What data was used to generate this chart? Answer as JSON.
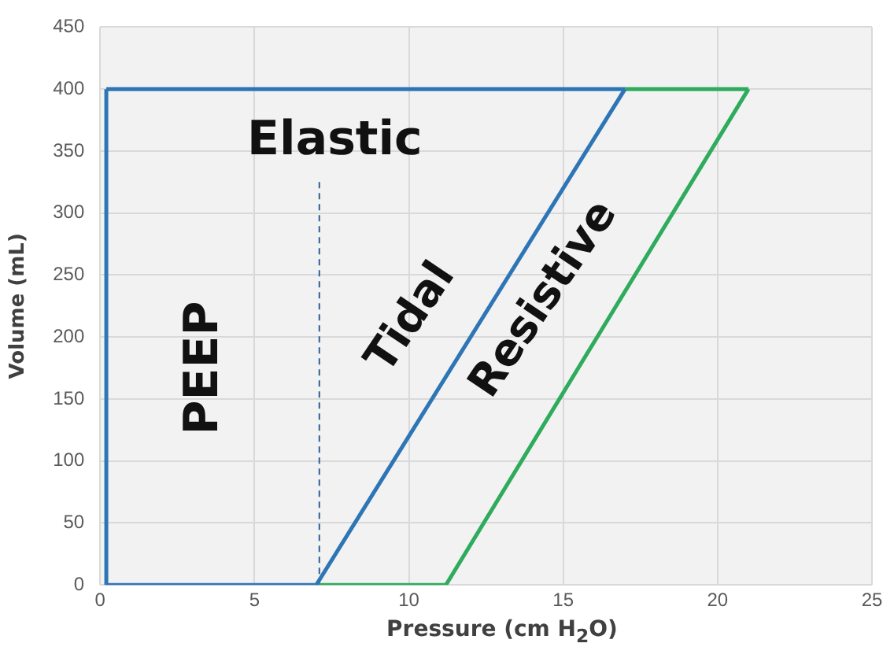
{
  "chart_data": {
    "type": "line",
    "xlabel": "Pressure (cm H$_{2}$O)",
    "ylabel": "Volume (mL)",
    "xlim": [
      0,
      25
    ],
    "xticks": [
      0,
      5,
      10,
      15,
      20,
      25
    ],
    "ylim": [
      0,
      450
    ],
    "yticks": [
      0,
      50,
      100,
      150,
      200,
      250,
      300,
      350,
      400,
      450
    ],
    "grid": true,
    "marker": "none",
    "series": [
      {
        "color": "#2e75b6",
        "x": [
          0.2,
          0.2
        ],
        "values": [
          0,
          400
        ],
        "line_style": "solid"
      },
      {
        "color": "#2e75b6",
        "x": [
          0.2,
          7
        ],
        "values": [
          0,
          0
        ],
        "line_style": "solid"
      },
      {
        "color": "#2e75b6",
        "x": [
          0.2,
          17
        ],
        "values": [
          400,
          400
        ],
        "line_style": "solid"
      },
      {
        "color": "#2e75b6",
        "x": [
          7,
          17
        ],
        "values": [
          0,
          400
        ],
        "line_style": "solid"
      },
      {
        "color": "#2eab5c",
        "x": [
          7,
          11.2
        ],
        "values": [
          0,
          0
        ],
        "line_style": "solid"
      },
      {
        "color": "#2eab5c",
        "x": [
          11.2,
          21
        ],
        "values": [
          0,
          400
        ],
        "line_style": "solid"
      },
      {
        "color": "#2eab5c",
        "x": [
          17,
          21
        ],
        "values": [
          400,
          400
        ],
        "line_style": "solid"
      },
      {
        "color": "#2e5f96",
        "x": [
          7.1,
          7.1
        ],
        "values": [
          0,
          325
        ],
        "line_style": "dashed"
      }
    ],
    "annotations": [
      "PEEP",
      "Elastic",
      "Tidal",
      "Resistive"
    ]
  }
}
